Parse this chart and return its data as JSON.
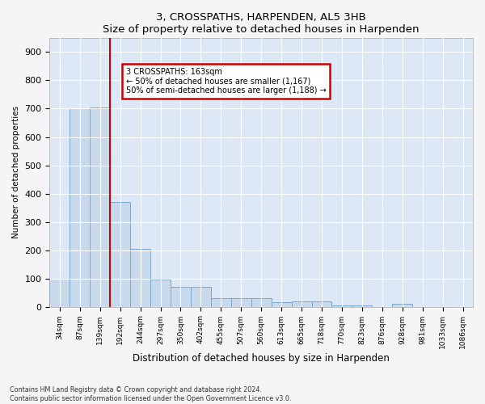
{
  "title": "3, CROSSPATHS, HARPENDEN, AL5 3HB",
  "subtitle": "Size of property relative to detached houses in Harpenden",
  "xlabel": "Distribution of detached houses by size in Harpenden",
  "ylabel": "Number of detached properties",
  "categories": [
    "34sqm",
    "87sqm",
    "139sqm",
    "192sqm",
    "244sqm",
    "297sqm",
    "350sqm",
    "402sqm",
    "455sqm",
    "507sqm",
    "560sqm",
    "613sqm",
    "665sqm",
    "718sqm",
    "770sqm",
    "823sqm",
    "876sqm",
    "928sqm",
    "981sqm",
    "1033sqm",
    "1086sqm"
  ],
  "values": [
    100,
    700,
    705,
    370,
    205,
    95,
    70,
    70,
    30,
    30,
    30,
    15,
    20,
    20,
    5,
    5,
    0,
    10,
    0,
    0,
    0
  ],
  "bar_color": "#c9d9ec",
  "bar_edge_color": "#7aa8cc",
  "background_color": "#dce8f5",
  "grid_color": "#ffffff",
  "red_line_x": 2.5,
  "annotation_text": "3 CROSSPATHS: 163sqm\n← 50% of detached houses are smaller (1,167)\n50% of semi-detached houses are larger (1,188) →",
  "annotation_box_color": "#cc0000",
  "ylim": [
    0,
    950
  ],
  "yticks": [
    0,
    100,
    200,
    300,
    400,
    500,
    600,
    700,
    800,
    900
  ],
  "footnote1": "Contains HM Land Registry data © Crown copyright and database right 2024.",
  "footnote2": "Contains public sector information licensed under the Open Government Licence v3.0."
}
